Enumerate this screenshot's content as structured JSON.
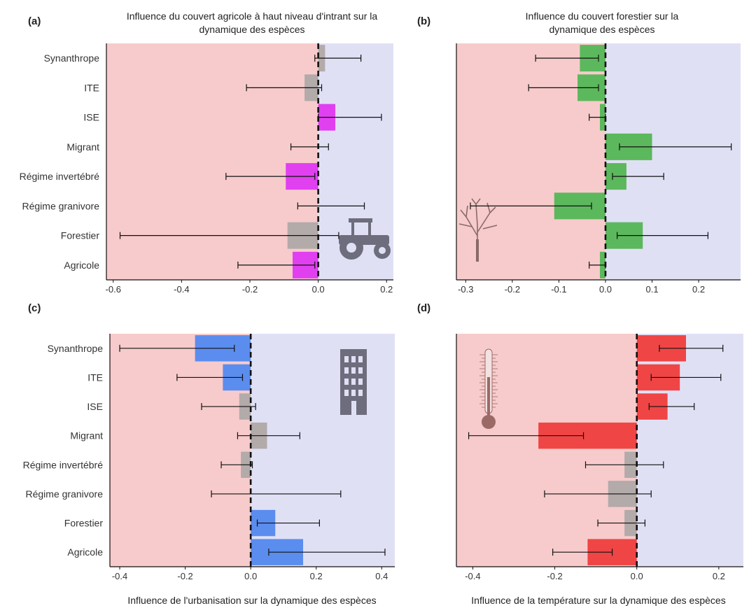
{
  "categories": [
    "Synanthrope",
    "ITE",
    "ISE",
    "Migrant",
    "Régime invertébré",
    "Régime granivore",
    "Forestier",
    "Agricole"
  ],
  "colors": {
    "negative_bg": "#f7cbcb",
    "positive_bg": "#e0e0f5",
    "grey": "#b3aaaa",
    "icon": "#6d6d7d",
    "tree": "#8a6a66",
    "thermo": "#9b6a66"
  },
  "chart_data": [
    {
      "panel": "(a)",
      "type": "bar",
      "orientation": "horizontal",
      "title": "Influence du couvert agricole à haut niveau d'intrant sur la dynamique des espèces",
      "xlabel": "",
      "xlim": [
        -0.62,
        0.22
      ],
      "xticks": [
        -0.6,
        -0.4,
        -0.2,
        0.0,
        0.2
      ],
      "xtick_labels": [
        "-0.6",
        "-0.4",
        "-0.2",
        "0.0",
        "0.2"
      ],
      "show_category_labels": true,
      "highlight_color": "#e040f0",
      "icon": "tractor-icon",
      "values": [
        0.02,
        -0.04,
        0.05,
        0.0,
        -0.095,
        0.0,
        -0.09,
        -0.075
      ],
      "ci_low": [
        -0.01,
        -0.21,
        0.0,
        -0.08,
        -0.27,
        -0.06,
        -0.58,
        -0.235
      ],
      "ci_high": [
        0.125,
        0.01,
        0.185,
        0.03,
        -0.01,
        0.135,
        0.06,
        -0.01
      ],
      "significant": [
        false,
        false,
        true,
        false,
        true,
        false,
        false,
        true
      ]
    },
    {
      "panel": "(b)",
      "type": "bar",
      "orientation": "horizontal",
      "title": "Influence du couvert forestier sur la dynamique des espèces",
      "xlabel": "",
      "xlim": [
        -0.32,
        0.29
      ],
      "xticks": [
        -0.3,
        -0.2,
        -0.1,
        0.0,
        0.1,
        0.2
      ],
      "xtick_labels": [
        "-0.3",
        "-0.2",
        "-0.1",
        "0.0",
        "0.1",
        "0.2"
      ],
      "show_category_labels": false,
      "highlight_color": "#5cb85c",
      "icon": "tree-icon",
      "values": [
        -0.055,
        -0.06,
        -0.012,
        0.1,
        0.045,
        -0.11,
        0.08,
        -0.012
      ],
      "ci_low": [
        -0.15,
        -0.165,
        -0.035,
        0.03,
        0.015,
        -0.29,
        0.025,
        -0.035
      ],
      "ci_high": [
        -0.015,
        -0.015,
        0.0,
        0.27,
        0.125,
        -0.03,
        0.22,
        0.0
      ],
      "significant": [
        true,
        true,
        true,
        true,
        true,
        true,
        true,
        true
      ]
    },
    {
      "panel": "(c)",
      "type": "bar",
      "orientation": "horizontal",
      "title": "",
      "xlabel": "Influence de l'urbanisation sur la dynamique des espèces",
      "xlim": [
        -0.43,
        0.44
      ],
      "xticks": [
        -0.4,
        -0.2,
        0.0,
        0.2,
        0.4
      ],
      "xtick_labels": [
        "-0.4",
        "-0.2",
        "0.0",
        "0.2",
        "0.4"
      ],
      "show_category_labels": true,
      "highlight_color": "#5b8def",
      "icon": "building-icon",
      "values": [
        -0.17,
        -0.085,
        -0.035,
        0.05,
        -0.03,
        0.0,
        0.075,
        0.16
      ],
      "ci_low": [
        -0.4,
        -0.225,
        -0.15,
        -0.04,
        -0.09,
        -0.12,
        0.02,
        0.055
      ],
      "ci_high": [
        -0.05,
        -0.025,
        0.015,
        0.15,
        0.005,
        0.275,
        0.21,
        0.41
      ],
      "significant": [
        true,
        true,
        false,
        false,
        false,
        false,
        true,
        true
      ]
    },
    {
      "panel": "(d)",
      "type": "bar",
      "orientation": "horizontal",
      "title": "",
      "xlabel": "Influence de la température sur la dynamique des espèces",
      "xlim": [
        -0.44,
        0.26
      ],
      "xticks": [
        -0.4,
        -0.2,
        0.0,
        0.2
      ],
      "xtick_labels": [
        "-0.4",
        "-0.2",
        "0.0",
        "0.2"
      ],
      "show_category_labels": false,
      "highlight_color": "#f04545",
      "icon": "thermometer-icon",
      "values": [
        0.12,
        0.105,
        0.075,
        -0.24,
        -0.03,
        -0.07,
        -0.03,
        -0.12
      ],
      "ci_low": [
        0.055,
        0.035,
        0.03,
        -0.41,
        -0.125,
        -0.225,
        -0.095,
        -0.205
      ],
      "ci_high": [
        0.21,
        0.205,
        0.14,
        -0.13,
        0.065,
        0.035,
        0.02,
        -0.06
      ],
      "significant": [
        true,
        true,
        true,
        true,
        false,
        false,
        false,
        true
      ]
    }
  ]
}
